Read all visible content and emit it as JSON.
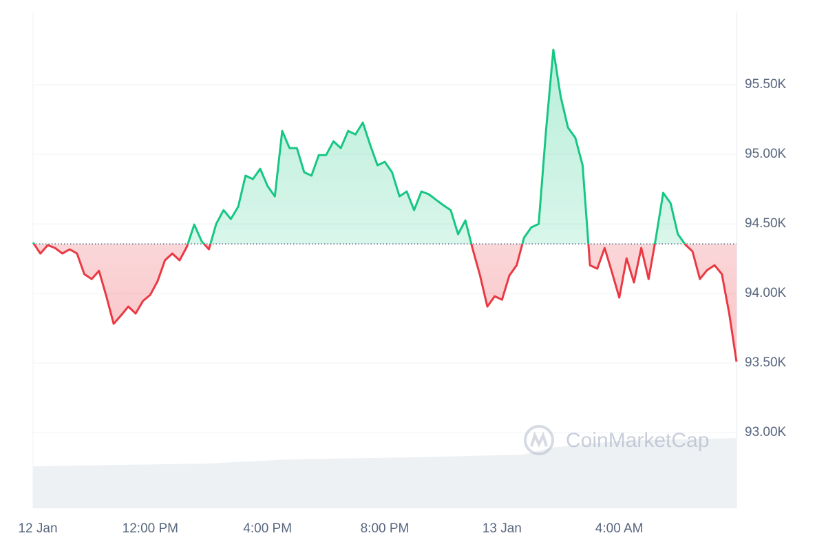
{
  "chart_data": {
    "type": "line",
    "watermark": "CoinMarketCap",
    "xlim": [
      8,
      32
    ],
    "ylim": [
      92456,
      96020
    ],
    "xticks": [
      {
        "value": 8,
        "label": "12 Jan"
      },
      {
        "value": 12,
        "label": "12:00 PM"
      },
      {
        "value": 16,
        "label": "4:00 PM"
      },
      {
        "value": 20,
        "label": "8:00 PM"
      },
      {
        "value": 24,
        "label": "13 Jan"
      },
      {
        "value": 28,
        "label": "4:00 AM"
      }
    ],
    "yticks": [
      {
        "value": 93000,
        "label": "93.00K"
      },
      {
        "value": 93500,
        "label": "93.50K"
      },
      {
        "value": 94000,
        "label": "94.00K"
      },
      {
        "value": 94500,
        "label": "94.50K"
      },
      {
        "value": 95000,
        "label": "95.00K"
      },
      {
        "value": 95500,
        "label": "95.50K"
      }
    ],
    "grid": true,
    "baseline": 94356,
    "up_color": "#16c784",
    "down_color": "#ea3943",
    "x": [
      8,
      8.25,
      8.5,
      8.75,
      9,
      9.25,
      9.5,
      9.75,
      10,
      10.25,
      10.5,
      10.75,
      11,
      11.25,
      11.5,
      11.75,
      12,
      12.25,
      12.5,
      12.75,
      13,
      13.25,
      13.5,
      13.75,
      14,
      14.25,
      14.5,
      14.75,
      15,
      15.25,
      15.5,
      15.75,
      16,
      16.25,
      16.5,
      16.75,
      17,
      17.25,
      17.5,
      17.75,
      18,
      18.25,
      18.5,
      18.75,
      19,
      19.25,
      19.5,
      19.75,
      20,
      20.25,
      20.5,
      20.75,
      21,
      21.25,
      21.5,
      21.75,
      22,
      22.25,
      22.5,
      22.75,
      23,
      23.25,
      23.5,
      23.75,
      24,
      24.25,
      24.5,
      24.75,
      25,
      25.25,
      25.5,
      25.75,
      26,
      26.25,
      26.5,
      26.75,
      27,
      27.25,
      27.5,
      27.75,
      28,
      28.25,
      28.5,
      28.75,
      29,
      29.25,
      29.5,
      29.75,
      30,
      30.25,
      30.5,
      30.75,
      31,
      31.25,
      31.5,
      31.75,
      32
    ],
    "values": [
      94366,
      94287,
      94347,
      94327,
      94287,
      94317,
      94287,
      94139,
      94104,
      94163,
      93980,
      93782,
      93842,
      93906,
      93856,
      93946,
      93990,
      94089,
      94238,
      94287,
      94238,
      94337,
      94495,
      94376,
      94317,
      94500,
      94599,
      94535,
      94624,
      94847,
      94822,
      94896,
      94772,
      94698,
      95168,
      95045,
      95045,
      94871,
      94847,
      94995,
      94995,
      95094,
      95045,
      95168,
      95143,
      95228,
      95069,
      94921,
      94946,
      94871,
      94698,
      94733,
      94599,
      94733,
      94713,
      94673,
      94634,
      94599,
      94426,
      94525,
      94317,
      94129,
      93906,
      93980,
      93955,
      94129,
      94203,
      94401,
      94475,
      94500,
      95168,
      95752,
      95416,
      95193,
      95119,
      94921,
      94203,
      94178,
      94327,
      94153,
      93970,
      94253,
      94079,
      94327,
      94104,
      94401,
      94723,
      94649,
      94426,
      94352,
      94302,
      94104,
      94168,
      94203,
      94139,
      93856,
      93510
    ]
  }
}
